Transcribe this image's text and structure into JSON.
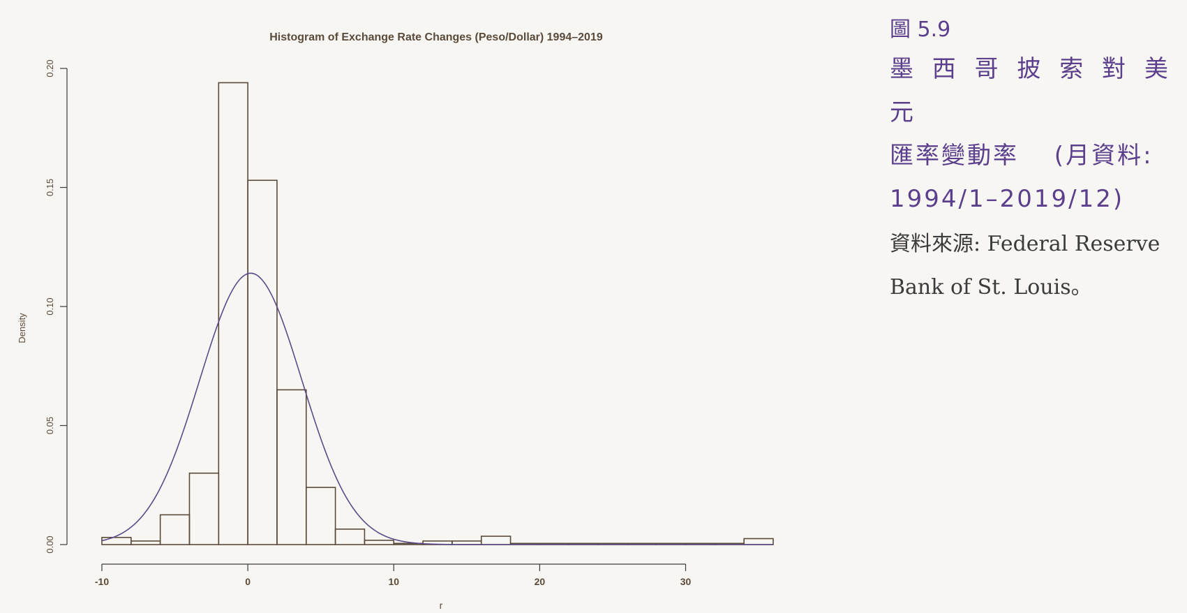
{
  "chart_data": {
    "type": "bar",
    "title": "Histogram of Exchange Rate Changes (Peso/Dollar) 1994–2019",
    "xlabel": "r",
    "ylabel": "Density",
    "xlim": [
      -10,
      36
    ],
    "ylim": [
      0,
      0.2
    ],
    "x_ticks": [
      "-10",
      "0",
      "10",
      "20",
      "30"
    ],
    "y_ticks": [
      "0.00",
      "0.05",
      "0.10",
      "0.15",
      "0.20"
    ],
    "bins": [
      {
        "from": -10,
        "to": -8,
        "density": 0.003
      },
      {
        "from": -8,
        "to": -6,
        "density": 0.0015
      },
      {
        "from": -6,
        "to": -4,
        "density": 0.0125
      },
      {
        "from": -4,
        "to": -2,
        "density": 0.03
      },
      {
        "from": -2,
        "to": 0,
        "density": 0.194
      },
      {
        "from": 0,
        "to": 2,
        "density": 0.153
      },
      {
        "from": 2,
        "to": 4,
        "density": 0.065
      },
      {
        "from": 4,
        "to": 6,
        "density": 0.024
      },
      {
        "from": 6,
        "to": 8,
        "density": 0.0065
      },
      {
        "from": 8,
        "to": 10,
        "density": 0.0018
      },
      {
        "from": 10,
        "to": 12,
        "density": 0.0005
      },
      {
        "from": 12,
        "to": 14,
        "density": 0.0015
      },
      {
        "from": 14,
        "to": 16,
        "density": 0.0015
      },
      {
        "from": 16,
        "to": 18,
        "density": 0.0035
      },
      {
        "from": 18,
        "to": 20,
        "density": 0.0005
      },
      {
        "from": 20,
        "to": 22,
        "density": 0.0005
      },
      {
        "from": 22,
        "to": 24,
        "density": 0.0005
      },
      {
        "from": 24,
        "to": 26,
        "density": 0.0005
      },
      {
        "from": 26,
        "to": 28,
        "density": 0.0005
      },
      {
        "from": 28,
        "to": 30,
        "density": 0.0005
      },
      {
        "from": 30,
        "to": 32,
        "density": 0.0005
      },
      {
        "from": 32,
        "to": 34,
        "density": 0.0005
      },
      {
        "from": 34,
        "to": 36,
        "density": 0.0025
      }
    ],
    "normal_curve": {
      "mean": 0.2,
      "sd": 3.5
    },
    "colors": {
      "bars": "#5a4a3a",
      "curve": "#5b4a8a",
      "axis": "#3a3a3a"
    }
  },
  "caption": {
    "figure_label": "圖 5.9",
    "title_line1": "墨 西 哥 披 索 對 美 元",
    "title_line2": "匯率變動率 　(月資料:",
    "title_line3": "1994/1–2019/12)",
    "source_line1": "資料來源: Federal Reserve",
    "source_line2": "Bank of St. Louis。"
  }
}
